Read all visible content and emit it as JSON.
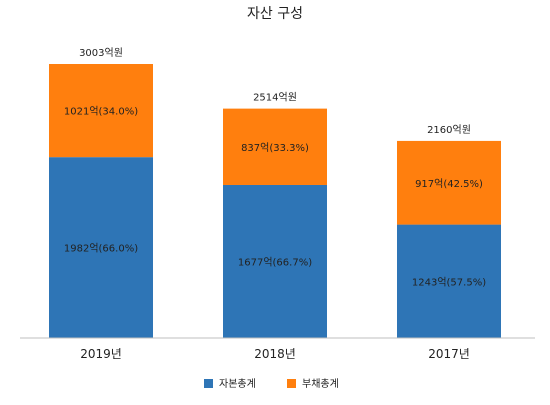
{
  "chart_data": {
    "type": "bar",
    "stacked": true,
    "title": "자산 구성",
    "categories": [
      "2019년",
      "2018년",
      "2017년"
    ],
    "series": [
      {
        "name": "자본총계",
        "color": "#2e75b6",
        "values": [
          1982,
          1677,
          1243
        ],
        "labels": [
          "1982억(66.0%)",
          "1677억(66.7%)",
          "1243억(57.5%)"
        ]
      },
      {
        "name": "부채총계",
        "color": "#ff7f0e",
        "values": [
          1021,
          837,
          917
        ],
        "labels": [
          "1021억(34.0%)",
          "837억(33.3%)",
          "917억(42.5%)"
        ]
      }
    ],
    "totals": [
      3003,
      2514,
      2160
    ],
    "total_labels": [
      "3003억원",
      "2514억원",
      "2160억원"
    ],
    "ylim": [
      0,
      3003
    ],
    "grid": false,
    "legend_position": "bottom"
  }
}
